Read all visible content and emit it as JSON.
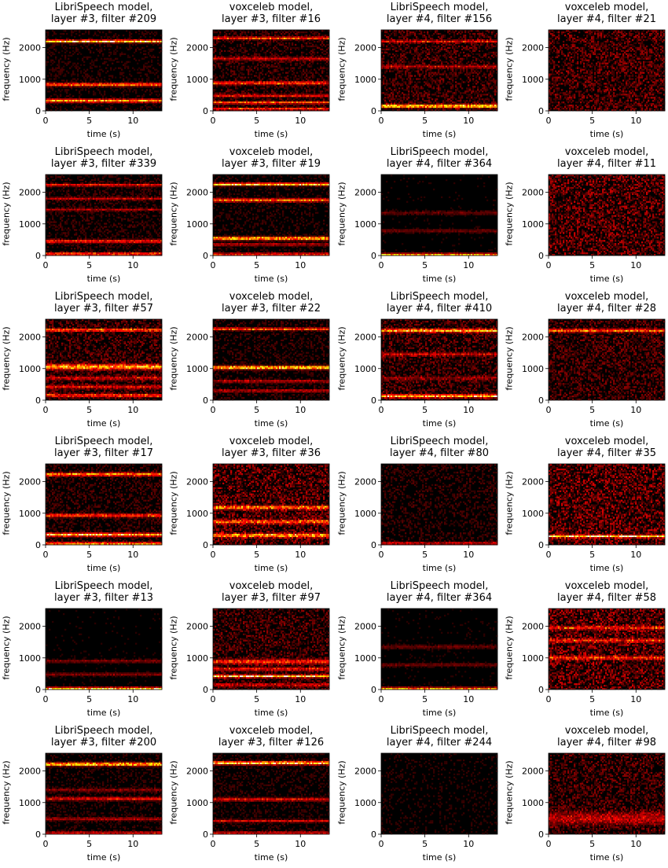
{
  "figure": {
    "colormap": "hot",
    "background": "#ffffff"
  },
  "chart_data": [
    {
      "type": "heatmap",
      "title": [
        "LibriSpeech model,",
        "layer #3, filter #209"
      ],
      "xlabel": "time (s)",
      "ylabel": "frequency (Hz)",
      "xlim": [
        0,
        13.3
      ],
      "ylim": [
        0,
        2560
      ],
      "xticks": [
        0,
        5,
        10
      ],
      "yticks": [
        0,
        1000,
        2000
      ],
      "bands": [
        {
          "f": 2200,
          "a": 0.9,
          "w": 40
        },
        {
          "f": 830,
          "a": 0.6,
          "w": 50
        },
        {
          "f": 320,
          "a": 0.7,
          "w": 50
        }
      ],
      "noise": 0.05
    },
    {
      "type": "heatmap",
      "title": [
        "voxceleb model,",
        "layer #3, filter #16"
      ],
      "xlabel": "time (s)",
      "ylabel": "frequency (Hz)",
      "xlim": [
        0,
        13.3
      ],
      "ylim": [
        0,
        2560
      ],
      "xticks": [
        0,
        5,
        10
      ],
      "yticks": [
        0,
        1000,
        2000
      ],
      "bands": [
        {
          "f": 2300,
          "a": 0.5,
          "w": 40
        },
        {
          "f": 1650,
          "a": 0.3,
          "w": 50
        },
        {
          "f": 880,
          "a": 0.5,
          "w": 50
        },
        {
          "f": 480,
          "a": 0.4,
          "w": 40
        },
        {
          "f": 260,
          "a": 0.55,
          "w": 40
        },
        {
          "f": 60,
          "a": 0.45,
          "w": 40
        }
      ],
      "noise": 0.08
    },
    {
      "type": "heatmap",
      "title": [
        "LibriSpeech model,",
        "layer #4, filter #156"
      ],
      "xlabel": "time (s)",
      "ylabel": "frequency (Hz)",
      "xlim": [
        0,
        13.3
      ],
      "ylim": [
        0,
        2560
      ],
      "xticks": [
        0,
        5,
        10
      ],
      "yticks": [
        0,
        1000,
        2000
      ],
      "bands": [
        {
          "f": 2200,
          "a": 0.35,
          "w": 40
        },
        {
          "f": 1400,
          "a": 0.25,
          "w": 50
        },
        {
          "f": 150,
          "a": 0.8,
          "w": 50
        }
      ],
      "noise": 0.1
    },
    {
      "type": "heatmap",
      "title": [
        "voxceleb model,",
        "layer #4, filter #21"
      ],
      "xlabel": "time (s)",
      "ylabel": "frequency (Hz)",
      "xlim": [
        0,
        13.3
      ],
      "ylim": [
        0,
        2560
      ],
      "xticks": [
        0,
        5,
        10
      ],
      "yticks": [
        0,
        1000,
        2000
      ],
      "bands": [],
      "noise": 0.12
    },
    {
      "type": "heatmap",
      "title": [
        "LibriSpeech model,",
        "layer #3, filter #339"
      ],
      "xlabel": "time (s)",
      "ylabel": "frequency (Hz)",
      "xlim": [
        0,
        13.3
      ],
      "ylim": [
        0,
        2560
      ],
      "xticks": [
        0,
        5,
        10
      ],
      "yticks": [
        0,
        1000,
        2000
      ],
      "bands": [
        {
          "f": 2230,
          "a": 0.4,
          "w": 40
        },
        {
          "f": 1800,
          "a": 0.3,
          "w": 40
        },
        {
          "f": 1450,
          "a": 0.25,
          "w": 40
        },
        {
          "f": 450,
          "a": 0.45,
          "w": 50
        },
        {
          "f": 50,
          "a": 0.6,
          "w": 40
        }
      ],
      "noise": 0.06
    },
    {
      "type": "heatmap",
      "title": [
        "voxceleb model,",
        "layer #3, filter #19"
      ],
      "xlabel": "time (s)",
      "ylabel": "frequency (Hz)",
      "xlim": [
        0,
        13.3
      ],
      "ylim": [
        0,
        2560
      ],
      "xticks": [
        0,
        5,
        10
      ],
      "yticks": [
        0,
        1000,
        2000
      ],
      "bands": [
        {
          "f": 2250,
          "a": 0.85,
          "w": 40
        },
        {
          "f": 1750,
          "a": 0.6,
          "w": 50
        },
        {
          "f": 540,
          "a": 0.8,
          "w": 50
        },
        {
          "f": 350,
          "a": 0.3,
          "w": 40
        },
        {
          "f": 40,
          "a": 0.5,
          "w": 40
        }
      ],
      "noise": 0.05
    },
    {
      "type": "heatmap",
      "title": [
        "LibriSpeech model,",
        "layer #4, filter #364"
      ],
      "xlabel": "time (s)",
      "ylabel": "frequency (Hz)",
      "xlim": [
        0,
        13.3
      ],
      "ylim": [
        0,
        2560
      ],
      "xticks": [
        0,
        5,
        10
      ],
      "yticks": [
        0,
        1000,
        2000
      ],
      "bands": [
        {
          "f": 1350,
          "a": 0.15,
          "w": 60
        },
        {
          "f": 780,
          "a": 0.15,
          "w": 60
        },
        {
          "f": 30,
          "a": 0.7,
          "w": 40
        }
      ],
      "noise": 0.03
    },
    {
      "type": "heatmap",
      "title": [
        "voxceleb model,",
        "layer #4, filter #11"
      ],
      "xlabel": "time (s)",
      "ylabel": "frequency (Hz)",
      "xlim": [
        0,
        13.3
      ],
      "ylim": [
        0,
        2560
      ],
      "xticks": [
        0,
        5,
        10
      ],
      "yticks": [
        0,
        1000,
        2000
      ],
      "bands": [],
      "noise": 0.14
    },
    {
      "type": "heatmap",
      "title": [
        "LibriSpeech model,",
        "layer #3, filter #57"
      ],
      "xlabel": "time (s)",
      "ylabel": "frequency (Hz)",
      "xlim": [
        0,
        13.3
      ],
      "ylim": [
        0,
        2560
      ],
      "xticks": [
        0,
        5,
        10
      ],
      "yticks": [
        0,
        1000,
        2000
      ],
      "bands": [
        {
          "f": 2220,
          "a": 0.6,
          "w": 40
        },
        {
          "f": 1050,
          "a": 0.7,
          "w": 80
        },
        {
          "f": 700,
          "a": 0.3,
          "w": 50
        },
        {
          "f": 420,
          "a": 0.35,
          "w": 50
        },
        {
          "f": 150,
          "a": 0.45,
          "w": 50
        }
      ],
      "noise": 0.1
    },
    {
      "type": "heatmap",
      "title": [
        "voxceleb model,",
        "layer #3, filter #22"
      ],
      "xlabel": "time (s)",
      "ylabel": "frequency (Hz)",
      "xlim": [
        0,
        13.3
      ],
      "ylim": [
        0,
        2560
      ],
      "xticks": [
        0,
        5,
        10
      ],
      "yticks": [
        0,
        1000,
        2000
      ],
      "bands": [
        {
          "f": 2250,
          "a": 0.55,
          "w": 40
        },
        {
          "f": 1030,
          "a": 0.85,
          "w": 50
        },
        {
          "f": 600,
          "a": 0.3,
          "w": 40
        },
        {
          "f": 300,
          "a": 0.3,
          "w": 40
        }
      ],
      "noise": 0.06
    },
    {
      "type": "heatmap",
      "title": [
        "LibriSpeech model,",
        "layer #4, filter #410"
      ],
      "xlabel": "time (s)",
      "ylabel": "frequency (Hz)",
      "xlim": [
        0,
        13.3
      ],
      "ylim": [
        0,
        2560
      ],
      "xticks": [
        0,
        5,
        10
      ],
      "yticks": [
        0,
        1000,
        2000
      ],
      "bands": [
        {
          "f": 2200,
          "a": 0.75,
          "w": 50
        },
        {
          "f": 1450,
          "a": 0.3,
          "w": 50
        },
        {
          "f": 700,
          "a": 0.2,
          "w": 50
        },
        {
          "f": 130,
          "a": 0.75,
          "w": 50
        }
      ],
      "noise": 0.1
    },
    {
      "type": "heatmap",
      "title": [
        "voxceleb model,",
        "layer #4, filter #28"
      ],
      "xlabel": "time (s)",
      "ylabel": "frequency (Hz)",
      "xlim": [
        0,
        13.3
      ],
      "ylim": [
        0,
        2560
      ],
      "xticks": [
        0,
        5,
        10
      ],
      "yticks": [
        0,
        1000,
        2000
      ],
      "bands": [
        {
          "f": 2200,
          "a": 0.55,
          "w": 50
        }
      ],
      "noise": 0.1
    },
    {
      "type": "heatmap",
      "title": [
        "LibriSpeech model,",
        "layer #3, filter #17"
      ],
      "xlabel": "time (s)",
      "ylabel": "frequency (Hz)",
      "xlim": [
        0,
        13.3
      ],
      "ylim": [
        0,
        2560
      ],
      "xticks": [
        0,
        5,
        10
      ],
      "yticks": [
        0,
        1000,
        2000
      ],
      "bands": [
        {
          "f": 2230,
          "a": 0.65,
          "w": 50
        },
        {
          "f": 930,
          "a": 0.5,
          "w": 50
        },
        {
          "f": 320,
          "a": 0.8,
          "w": 50
        },
        {
          "f": 40,
          "a": 0.7,
          "w": 40
        }
      ],
      "noise": 0.07
    },
    {
      "type": "heatmap",
      "title": [
        "voxceleb model,",
        "layer #3, filter #36"
      ],
      "xlabel": "time (s)",
      "ylabel": "frequency (Hz)",
      "xlim": [
        0,
        13.3
      ],
      "ylim": [
        0,
        2560
      ],
      "xticks": [
        0,
        5,
        10
      ],
      "yticks": [
        0,
        1000,
        2000
      ],
      "bands": [
        {
          "f": 1180,
          "a": 0.55,
          "w": 60
        },
        {
          "f": 730,
          "a": 0.5,
          "w": 60
        },
        {
          "f": 300,
          "a": 0.65,
          "w": 60
        }
      ],
      "noise": 0.14
    },
    {
      "type": "heatmap",
      "title": [
        "LibriSpeech model,",
        "layer #4, filter #80"
      ],
      "xlabel": "time (s)",
      "ylabel": "frequency (Hz)",
      "xlim": [
        0,
        13.3
      ],
      "ylim": [
        0,
        2560
      ],
      "xticks": [
        0,
        5,
        10
      ],
      "yticks": [
        0,
        1000,
        2000
      ],
      "bands": [
        {
          "f": 50,
          "a": 0.35,
          "w": 40
        }
      ],
      "noise": 0.06
    },
    {
      "type": "heatmap",
      "title": [
        "voxceleb model,",
        "layer #4, filter #35"
      ],
      "xlabel": "time (s)",
      "ylabel": "frequency (Hz)",
      "xlim": [
        0,
        13.3
      ],
      "ylim": [
        0,
        2560
      ],
      "xticks": [
        0,
        5,
        10
      ],
      "yticks": [
        0,
        1000,
        2000
      ],
      "bands": [
        {
          "f": 270,
          "a": 0.85,
          "w": 40
        }
      ],
      "noise": 0.15
    },
    {
      "type": "heatmap",
      "title": [
        "LibriSpeech model,",
        "layer #3, filter #13"
      ],
      "xlabel": "time (s)",
      "ylabel": "frequency (Hz)",
      "xlim": [
        0,
        13.3
      ],
      "ylim": [
        0,
        2560
      ],
      "xticks": [
        0,
        5,
        10
      ],
      "yticks": [
        0,
        1000,
        2000
      ],
      "bands": [
        {
          "f": 900,
          "a": 0.2,
          "w": 50
        },
        {
          "f": 480,
          "a": 0.2,
          "w": 50
        },
        {
          "f": 30,
          "a": 0.85,
          "w": 40
        }
      ],
      "noise": 0.03
    },
    {
      "type": "heatmap",
      "title": [
        "voxceleb model,",
        "layer #3, filter #97"
      ],
      "xlabel": "time (s)",
      "ylabel": "frequency (Hz)",
      "xlim": [
        0,
        13.3
      ],
      "ylim": [
        0,
        2560
      ],
      "xticks": [
        0,
        5,
        10
      ],
      "yticks": [
        0,
        1000,
        2000
      ],
      "bands": [
        {
          "f": 880,
          "a": 0.45,
          "w": 70
        },
        {
          "f": 650,
          "a": 0.4,
          "w": 50
        },
        {
          "f": 420,
          "a": 0.85,
          "w": 40
        },
        {
          "f": 150,
          "a": 0.3,
          "w": 50
        }
      ],
      "noise": 0.1
    },
    {
      "type": "heatmap",
      "title": [
        "LibriSpeech model,",
        "layer #4, filter #364"
      ],
      "xlabel": "time (s)",
      "ylabel": "frequency (Hz)",
      "xlim": [
        0,
        13.3
      ],
      "ylim": [
        0,
        2560
      ],
      "xticks": [
        0,
        5,
        10
      ],
      "yticks": [
        0,
        1000,
        2000
      ],
      "bands": [
        {
          "f": 1350,
          "a": 0.15,
          "w": 60
        },
        {
          "f": 780,
          "a": 0.15,
          "w": 60
        },
        {
          "f": 30,
          "a": 0.7,
          "w": 40
        }
      ],
      "noise": 0.03
    },
    {
      "type": "heatmap",
      "title": [
        "voxceleb model,",
        "layer #4, filter #58"
      ],
      "xlabel": "time (s)",
      "ylabel": "frequency (Hz)",
      "xlim": [
        0,
        13.3
      ],
      "ylim": [
        0,
        2560
      ],
      "xticks": [
        0,
        5,
        10
      ],
      "yticks": [
        0,
        1000,
        2000
      ],
      "bands": [
        {
          "f": 1950,
          "a": 0.35,
          "w": 60
        },
        {
          "f": 1550,
          "a": 0.35,
          "w": 60
        },
        {
          "f": 1000,
          "a": 0.4,
          "w": 60
        }
      ],
      "noise": 0.15
    },
    {
      "type": "heatmap",
      "title": [
        "LibriSpeech model,",
        "layer #3, filter #200"
      ],
      "xlabel": "time (s)",
      "ylabel": "frequency (Hz)",
      "xlim": [
        0,
        13.3
      ],
      "ylim": [
        0,
        2560
      ],
      "xticks": [
        0,
        5,
        10
      ],
      "yticks": [
        0,
        1000,
        2000
      ],
      "bands": [
        {
          "f": 2210,
          "a": 0.85,
          "w": 50
        },
        {
          "f": 1400,
          "a": 0.2,
          "w": 50
        },
        {
          "f": 1120,
          "a": 0.4,
          "w": 50
        },
        {
          "f": 480,
          "a": 0.25,
          "w": 50
        },
        {
          "f": 40,
          "a": 0.4,
          "w": 40
        }
      ],
      "noise": 0.05
    },
    {
      "type": "heatmap",
      "title": [
        "voxceleb model,",
        "layer #3, filter #126"
      ],
      "xlabel": "time (s)",
      "ylabel": "frequency (Hz)",
      "xlim": [
        0,
        13.3
      ],
      "ylim": [
        0,
        2560
      ],
      "xticks": [
        0,
        5,
        10
      ],
      "yticks": [
        0,
        1000,
        2000
      ],
      "bands": [
        {
          "f": 2250,
          "a": 0.85,
          "w": 50
        },
        {
          "f": 1100,
          "a": 0.4,
          "w": 50
        },
        {
          "f": 420,
          "a": 0.35,
          "w": 40
        },
        {
          "f": 40,
          "a": 0.4,
          "w": 40
        }
      ],
      "noise": 0.05
    },
    {
      "type": "heatmap",
      "title": [
        "LibriSpeech model,",
        "layer #4, filter #244"
      ],
      "xlabel": "time (s)",
      "ylabel": "frequency (Hz)",
      "xlim": [
        0,
        13.3
      ],
      "ylim": [
        0,
        2560
      ],
      "xticks": [
        0,
        5,
        10
      ],
      "yticks": [
        0,
        1000,
        2000
      ],
      "bands": [],
      "noise": 0.04
    },
    {
      "type": "heatmap",
      "title": [
        "voxceleb model,",
        "layer #4, filter #98"
      ],
      "xlabel": "time (s)",
      "ylabel": "frequency (Hz)",
      "xlim": [
        0,
        13.3
      ],
      "ylim": [
        0,
        2560
      ],
      "xticks": [
        0,
        5,
        10
      ],
      "yticks": [
        0,
        1000,
        2000
      ],
      "bands": [
        {
          "f": 500,
          "a": 0.25,
          "w": 200
        }
      ],
      "noise": 0.1
    }
  ]
}
